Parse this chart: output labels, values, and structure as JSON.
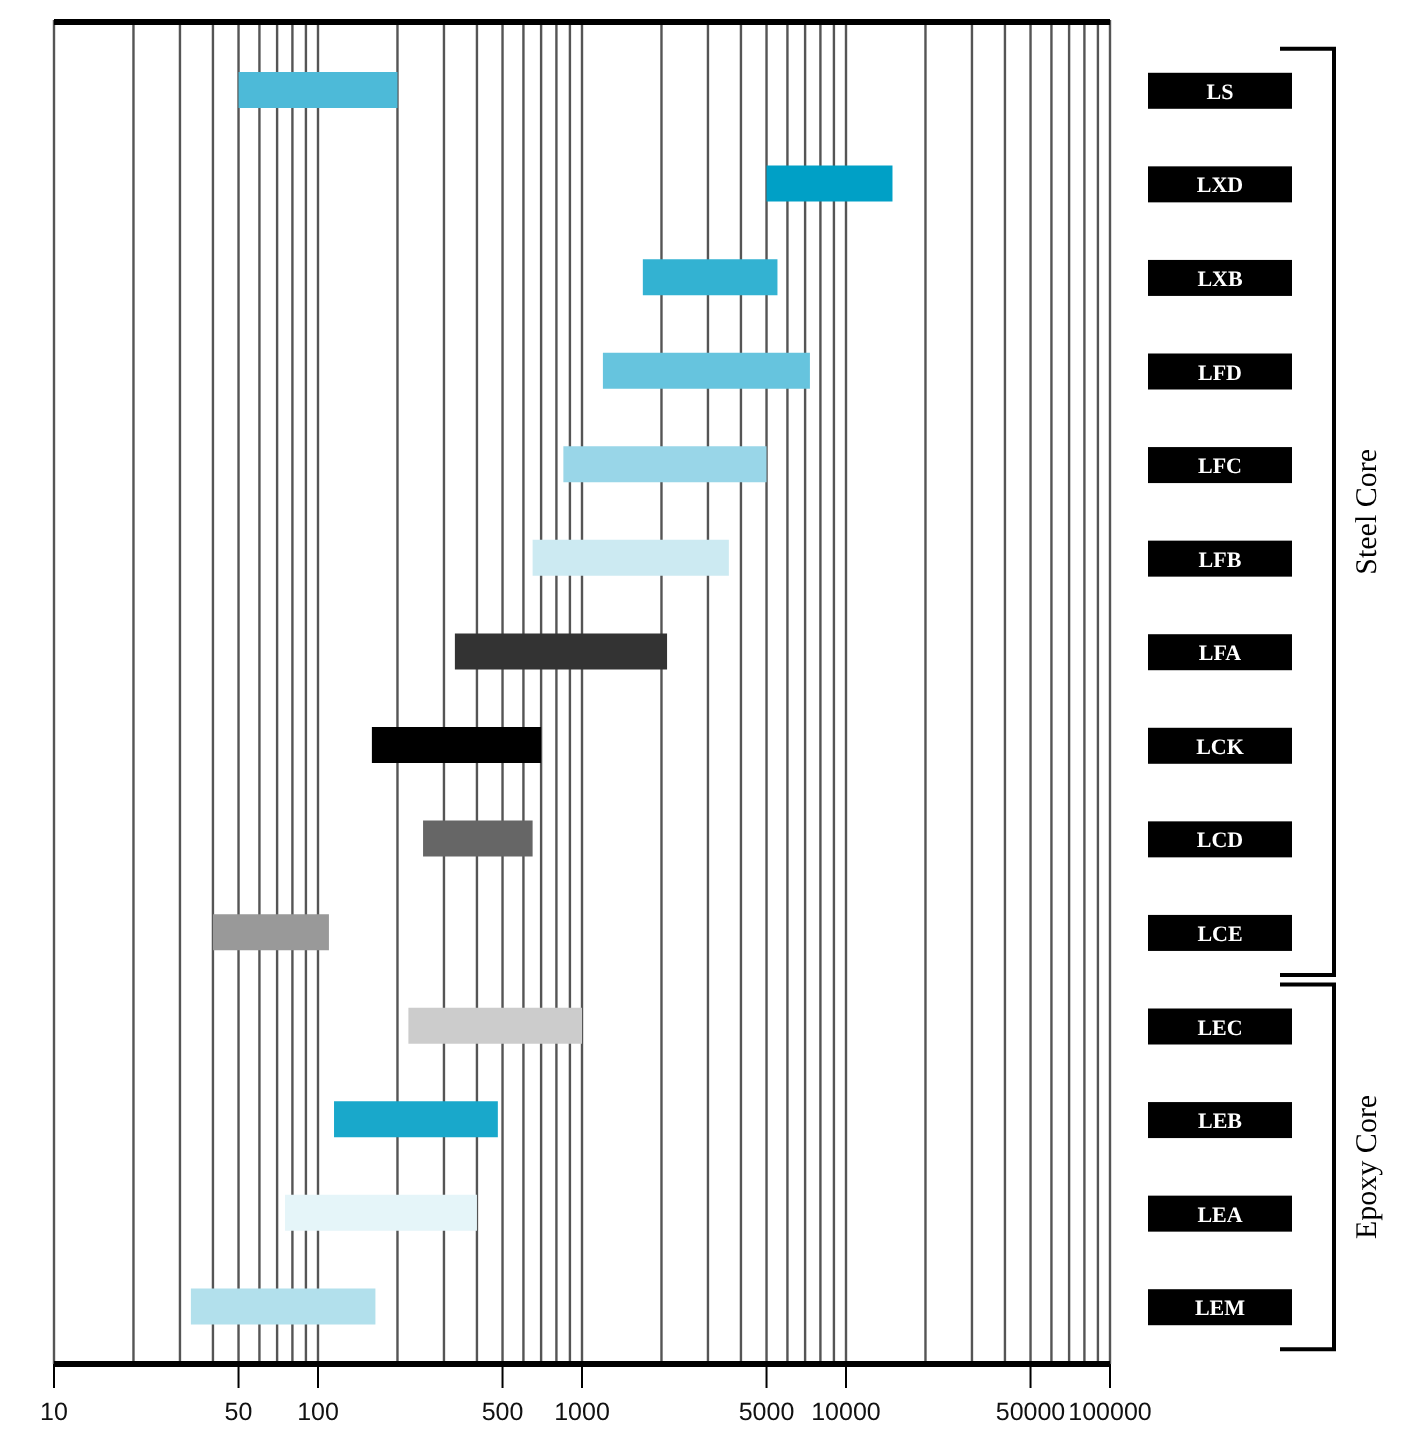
{
  "chart_data": {
    "type": "bar",
    "orientation": "horizontal",
    "log": "x",
    "categories": [
      "LS",
      "LXD",
      "LXB",
      "LFD",
      "LFC",
      "LFB",
      "LFA",
      "LCK",
      "LCD",
      "LCE",
      "LEC",
      "LEB",
      "LEA",
      "LEM"
    ],
    "base": [
      50,
      5000,
      1700,
      1200,
      850,
      650,
      330,
      160,
      250,
      40,
      220,
      115,
      75,
      33
    ],
    "values": [
      150,
      10000,
      3800,
      6100,
      4150,
      2950,
      1770,
      540,
      400,
      70,
      780,
      365,
      325,
      132
    ],
    "colors": [
      "#4dbad8",
      "#00a0c6",
      "#33b2d2",
      "#66c4de",
      "#99d6e8",
      "#cceaf2",
      "#333333",
      "#000000",
      "#666666",
      "#999999",
      "#cccccc",
      "#19a8cb",
      "#e5f5f9",
      "#b2e0ec"
    ],
    "xlim": [
      10,
      100000
    ],
    "xticks": [
      10,
      {
        "value": 20,
        "label": null
      },
      {
        "value": 30,
        "label": null
      },
      {
        "value": 40,
        "label": null
      },
      50,
      {
        "value": 60,
        "label": null
      },
      {
        "value": 70,
        "label": null
      },
      {
        "value": 80,
        "label": null
      },
      {
        "value": 90,
        "label": null
      },
      100,
      {
        "value": 200,
        "label": null
      },
      {
        "value": 300,
        "label": null
      },
      {
        "value": 400,
        "label": null
      },
      500,
      {
        "value": 600,
        "label": null
      },
      {
        "value": 700,
        "label": null
      },
      {
        "value": 800,
        "label": null
      },
      {
        "value": 900,
        "label": null
      },
      1000,
      {
        "value": 2000,
        "label": null
      },
      {
        "value": 3000,
        "label": null
      },
      {
        "value": 4000,
        "label": null
      },
      5000,
      {
        "value": 6000,
        "label": null
      },
      {
        "value": 7000,
        "label": null
      },
      {
        "value": 8000,
        "label": null
      },
      {
        "value": 9000,
        "label": null
      },
      10000,
      {
        "value": 20000,
        "label": null
      },
      {
        "value": 30000,
        "label": null
      },
      {
        "value": 40000,
        "label": null
      },
      50000,
      {
        "value": 60000,
        "label": null
      },
      {
        "value": 70000,
        "label": null
      },
      {
        "value": 80000,
        "label": null
      },
      {
        "value": 90000,
        "label": null
      },
      100000
    ],
    "grid": "x",
    "annotations": [
      "Steel Core",
      "Epoxy Core"
    ]
  }
}
